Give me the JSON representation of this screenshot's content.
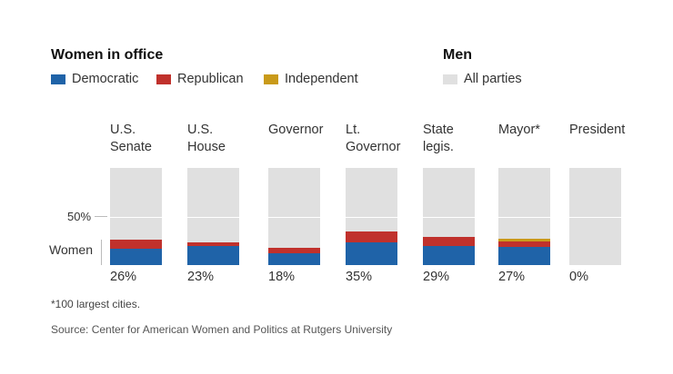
{
  "legend": {
    "women_title": "Women in office",
    "men_title": "Men",
    "items": [
      {
        "label": "Democratic",
        "color": "#1f63a8"
      },
      {
        "label": "Republican",
        "color": "#c0312c"
      },
      {
        "label": "Independent",
        "color": "#c99a1a"
      }
    ],
    "men_item": {
      "label": "All parties",
      "color": "#e0e0e0"
    }
  },
  "axis": {
    "fifty_label": "50%",
    "women_label": "Women"
  },
  "chart_data": {
    "type": "bar",
    "stacked": true,
    "ylim": [
      0,
      100
    ],
    "categories": [
      {
        "label_lines": [
          "U.S.",
          "Senate"
        ],
        "pct_label": "26%"
      },
      {
        "label_lines": [
          "U.S.",
          "House"
        ],
        "pct_label": "23%"
      },
      {
        "label_lines": [
          "Governor"
        ],
        "pct_label": "18%"
      },
      {
        "label_lines": [
          "Lt.",
          "Governor"
        ],
        "pct_label": "35%"
      },
      {
        "label_lines": [
          "State",
          "legis."
        ],
        "pct_label": "29%"
      },
      {
        "label_lines": [
          "Mayor*"
        ],
        "pct_label": "27%"
      },
      {
        "label_lines": [
          "President"
        ],
        "pct_label": "0%"
      }
    ],
    "series": [
      {
        "name": "Democratic",
        "color": "#1f63a8",
        "values": [
          17,
          20,
          12,
          23,
          20,
          19,
          0
        ]
      },
      {
        "name": "Republican",
        "color": "#c0312c",
        "values": [
          9,
          3,
          6,
          12,
          9,
          5,
          0
        ]
      },
      {
        "name": "Independent",
        "color": "#c99a1a",
        "values": [
          0,
          0,
          0,
          0,
          0,
          3,
          0
        ]
      }
    ],
    "men_series": {
      "name": "All parties",
      "color": "#e0e0e0",
      "values": [
        74,
        77,
        82,
        65,
        71,
        73,
        100
      ]
    }
  },
  "footnote": "*100 largest cities.",
  "source": "Source: Center for American Women and Politics at Rutgers University"
}
